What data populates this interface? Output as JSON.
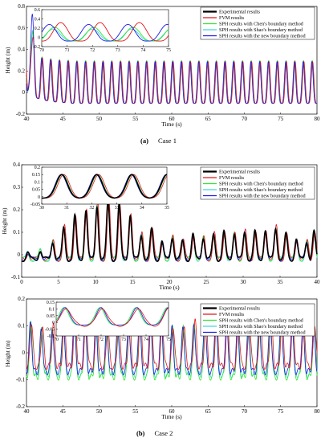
{
  "legend": [
    {
      "key": "exp",
      "label": "Experimental results",
      "color": "#000000"
    },
    {
      "key": "fvm",
      "label": "FVM results",
      "color": "#e4141b"
    },
    {
      "key": "chen",
      "label": "SPH results with Chen's boundary method",
      "color": "#2ee62e"
    },
    {
      "key": "shao",
      "label": "SPH results with Shao's boundary method",
      "color": "#40d8d8"
    },
    {
      "key": "new",
      "label": "SPH results with the new boundary method",
      "color": "#1a1ae6"
    }
  ],
  "chart_data": [
    {
      "type": "line",
      "id": "case1",
      "caption_tag": "(a)",
      "caption_text": "Case 1",
      "xlabel": "Time (s)",
      "ylabel": "Height (m)",
      "xlim": [
        40,
        80
      ],
      "ylim": [
        -0.2,
        0.8
      ],
      "xticks": [
        40,
        45,
        50,
        55,
        60,
        65,
        70,
        75,
        80
      ],
      "yticks": [
        -0.2,
        0,
        0.2,
        0.4,
        0.6,
        0.8
      ],
      "wave_period_s": 1.2,
      "series_peaks": {
        "exp": null,
        "fvm": 0.29,
        "chen": 0.3,
        "shao": 0.26,
        "new": 0.29
      },
      "trough": -0.1,
      "initial_peak": 0.77,
      "inset": {
        "xlim": [
          70,
          75
        ],
        "ylim": [
          -0.2,
          0.6
        ],
        "xticks": [
          70,
          71,
          72,
          73,
          74,
          75
        ],
        "yticks": [
          -0.2,
          0,
          0.2,
          0.4,
          0.6
        ],
        "peaks": {
          "fvm": 0.32,
          "chen": 0.22,
          "shao": 0.18,
          "new": 0.28
        }
      }
    },
    {
      "type": "line",
      "id": "case_mid",
      "caption_tag": "",
      "caption_text": "",
      "xlabel": "Time (s)",
      "ylabel": "Height (m)",
      "xlim": [
        0,
        40
      ],
      "ylim": [
        -0.1,
        0.4
      ],
      "xticks": [
        0,
        5,
        10,
        15,
        20,
        25,
        30,
        35,
        40
      ],
      "yticks": [
        -0.1,
        0,
        0.1,
        0.2,
        0.3,
        0.4
      ],
      "envelope_peaks": [
        {
          "t": 0.8,
          "h": 0.01
        },
        {
          "t": 2.5,
          "h": 0.02
        },
        {
          "t": 4.2,
          "h": 0.06
        },
        {
          "t": 5.7,
          "h": 0.12
        },
        {
          "t": 7.2,
          "h": 0.17
        },
        {
          "t": 8.7,
          "h": 0.2
        },
        {
          "t": 10.2,
          "h": 0.22
        },
        {
          "t": 11.7,
          "h": 0.24
        },
        {
          "t": 13.2,
          "h": 0.22
        },
        {
          "t": 14.7,
          "h": 0.18
        },
        {
          "t": 16.2,
          "h": 0.09
        },
        {
          "t": 17.6,
          "h": 0.11
        },
        {
          "t": 19.0,
          "h": 0.06
        },
        {
          "t": 20.4,
          "h": 0.08
        },
        {
          "t": 21.8,
          "h": 0.06
        },
        {
          "t": 23.2,
          "h": 0.09
        },
        {
          "t": 24.6,
          "h": 0.08
        },
        {
          "t": 26.0,
          "h": 0.09
        },
        {
          "t": 27.4,
          "h": 0.1
        },
        {
          "t": 28.8,
          "h": 0.1
        },
        {
          "t": 30.2,
          "h": 0.1
        },
        {
          "t": 31.6,
          "h": 0.1
        },
        {
          "t": 33.0,
          "h": 0.11
        },
        {
          "t": 34.4,
          "h": 0.12
        },
        {
          "t": 35.8,
          "h": 0.09
        },
        {
          "t": 37.2,
          "h": 0.07
        },
        {
          "t": 38.6,
          "h": 0.06
        },
        {
          "t": 39.6,
          "h": 0.1
        }
      ],
      "inset": {
        "xlim": [
          30,
          35
        ],
        "ylim": [
          -0.05,
          0.2
        ],
        "xticks": [
          30,
          31,
          32,
          33,
          34,
          35
        ],
        "yticks": [
          -0.05,
          0,
          0.05,
          0.1,
          0.15,
          0.2
        ],
        "peak_times": [
          30.8,
          32.2,
          33.6,
          35.0
        ]
      }
    },
    {
      "type": "line",
      "id": "case2",
      "caption_tag": "(b)",
      "caption_text": "Case 2",
      "xlabel": "Time (s)",
      "ylabel": "Height (m)",
      "xlim": [
        40,
        80
      ],
      "ylim": [
        -0.2,
        0.2
      ],
      "xticks": [
        40,
        45,
        50,
        55,
        60,
        65,
        70,
        75,
        80
      ],
      "yticks": [
        -0.2,
        -0.1,
        0,
        0.1,
        0.2
      ],
      "wave_period_s": 1.5,
      "series_peaks": {
        "fvm": 0.12,
        "chen": 0.11,
        "shao": 0.1,
        "new": 0.11
      },
      "trough": -0.07,
      "inset": {
        "xlim": [
          70,
          75
        ],
        "ylim": [
          -0.1,
          0.15
        ],
        "xticks": [
          70,
          71,
          72,
          73,
          74,
          75
        ],
        "yticks": [
          -0.1,
          -0.05,
          0,
          0.05,
          0.1,
          0.15
        ],
        "peak_times": [
          70.4,
          72.0,
          73.6,
          75.0
        ]
      }
    }
  ]
}
